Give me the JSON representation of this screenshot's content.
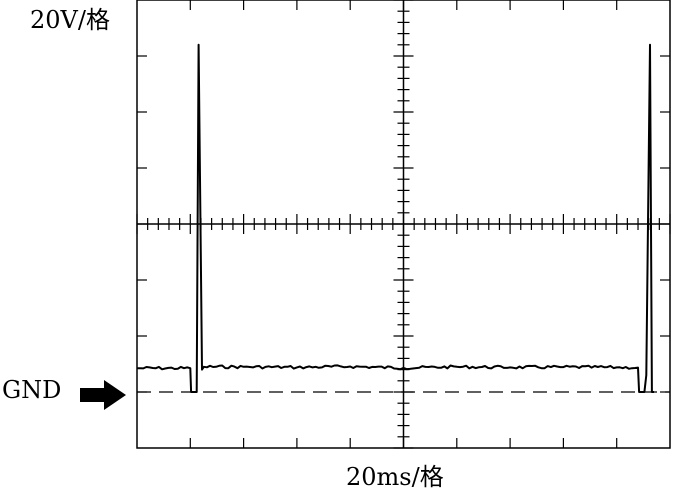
{
  "chart_data": {
    "type": "line",
    "title": "",
    "ylabel": "20V/格",
    "xlabel": "20ms/格",
    "ground_label": "GND",
    "grid": true,
    "x_divisions": 10,
    "y_divisions": 8,
    "xlim": [
      0,
      200
    ],
    "ylim": [
      -20,
      140
    ],
    "ground_level": 0,
    "series": [
      {
        "x": [
          0,
          20,
          20.3,
          22.4,
          23.1,
          24.4,
          25.1,
          40,
          60,
          80,
          100,
          120,
          140,
          160,
          180,
          188,
          188.4,
          190.4,
          191.1,
          192.5,
          193.2,
          194
        ],
        "values": [
          8.5,
          8.5,
          0,
          0,
          124,
          8,
          9,
          9,
          8.8,
          9.1,
          8.6,
          9,
          8.8,
          8.9,
          8.8,
          8.7,
          0,
          0,
          6,
          124,
          0,
          0
        ]
      }
    ]
  }
}
